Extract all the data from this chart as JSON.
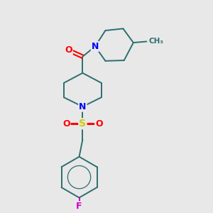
{
  "background_color": "#e8e8e8",
  "atom_colors": {
    "N": "#0000ff",
    "O": "#ff0000",
    "S": "#cccc00",
    "F": "#cc00cc",
    "C": "#2d6e6e"
  },
  "bond_color": "#2d6e6e",
  "fig_size": [
    3.0,
    3.0
  ],
  "dpi": 100,
  "xlim": [
    0,
    10
  ],
  "ylim": [
    0,
    10
  ]
}
